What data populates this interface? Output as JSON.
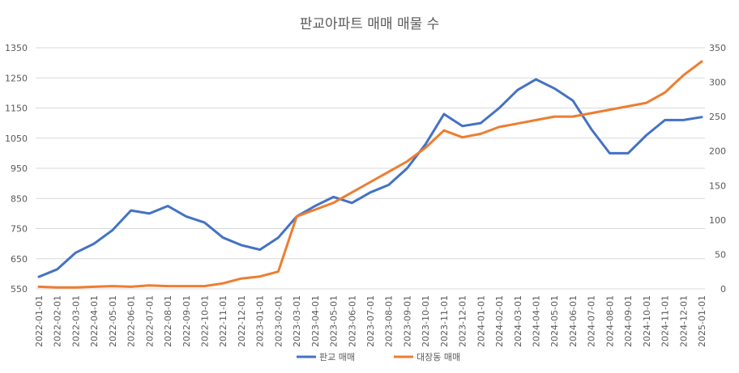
{
  "chart_data": {
    "type": "line",
    "title": "판교아파트 매매 매물 수",
    "xlabel": "",
    "ylabel": "",
    "y_left": {
      "ticks": [
        550,
        650,
        750,
        850,
        950,
        1050,
        1150,
        1250,
        1350
      ],
      "range": [
        550,
        1350
      ]
    },
    "y_right": {
      "ticks": [
        0,
        50,
        100,
        150,
        200,
        250,
        300,
        350
      ],
      "range": [
        0,
        350
      ]
    },
    "x_categories": [
      "2022-01-01",
      "2022-02-01",
      "2022-03-01",
      "2022-04-01",
      "2022-05-01",
      "2022-06-01",
      "2022-07-01",
      "2022-08-01",
      "2022-09-01",
      "2022-10-01",
      "2022-11-01",
      "2022-12-01",
      "2023-01-01",
      "2023-02-01",
      "2023-03-01",
      "2023-04-01",
      "2023-05-01",
      "2023-06-01",
      "2023-07-01",
      "2023-08-01",
      "2023-09-01",
      "2023-10-01",
      "2023-11-01",
      "2023-12-01",
      "2024-01-01",
      "2024-02-01",
      "2024-03-01",
      "2024-04-01",
      "2024-05-01",
      "2024-06-01",
      "2024-07-01",
      "2024-08-01",
      "2024-09-01",
      "2024-10-01",
      "2024-11-01",
      "2024-12-01",
      "2025-01-01"
    ],
    "grid": true,
    "legend_position": "bottom",
    "series": [
      {
        "name": "판교 매매",
        "axis": "left",
        "color": "#4472C4",
        "values": [
          590,
          615,
          670,
          700,
          745,
          810,
          800,
          825,
          790,
          770,
          720,
          695,
          680,
          720,
          790,
          825,
          855,
          835,
          870,
          895,
          950,
          1030,
          1130,
          1090,
          1100,
          1150,
          1210,
          1245,
          1215,
          1175,
          1080,
          1000,
          1000,
          1060,
          1110,
          1110,
          1120
        ]
      },
      {
        "name": "대장동 매매",
        "axis": "right",
        "color": "#ED7D31",
        "values": [
          3,
          2,
          2,
          3,
          4,
          3,
          5,
          4,
          4,
          4,
          8,
          15,
          18,
          25,
          105,
          115,
          125,
          140,
          155,
          170,
          185,
          205,
          230,
          220,
          225,
          235,
          240,
          245,
          250,
          250,
          255,
          260,
          265,
          270,
          285,
          310,
          330
        ]
      }
    ]
  }
}
